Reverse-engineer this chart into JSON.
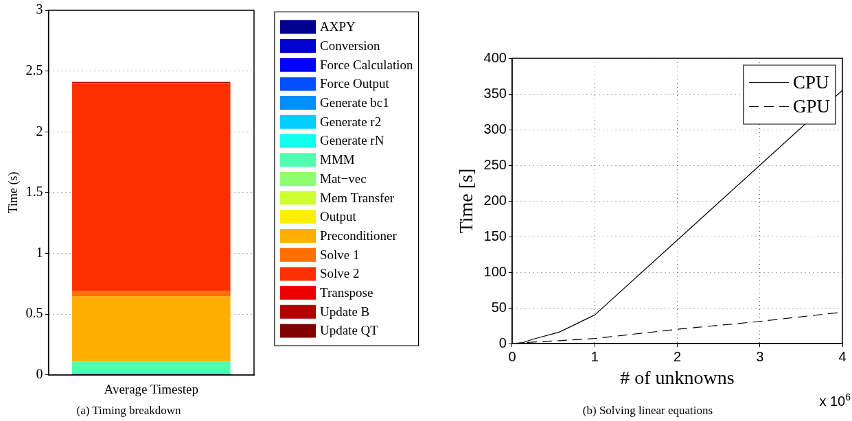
{
  "chart_data": [
    {
      "type": "bar",
      "title": "(a) Timing breakdown",
      "ylabel": "Time (s)",
      "categories": [
        "Average Timestep"
      ],
      "stacked": true,
      "ylim": [
        0,
        3
      ],
      "yticks": [
        0,
        0.5,
        1,
        1.5,
        2,
        2.5,
        3
      ],
      "grid": "y",
      "legend": "right",
      "series": [
        {
          "name": "AXPY",
          "color": "#00008f",
          "values": [
            0.005
          ]
        },
        {
          "name": "Conversion",
          "color": "#0000cf",
          "values": [
            0.003
          ]
        },
        {
          "name": "Force Calculation",
          "color": "#0000ff",
          "values": [
            0
          ]
        },
        {
          "name": "Force Output",
          "color": "#0050ff",
          "values": [
            0
          ]
        },
        {
          "name": "Generate bc1",
          "color": "#008fff",
          "values": [
            0
          ]
        },
        {
          "name": "Generate r2",
          "color": "#00cfff",
          "values": [
            0.002
          ]
        },
        {
          "name": "Generate rN",
          "color": "#10ffef",
          "values": [
            0
          ]
        },
        {
          "name": "MMM",
          "color": "#50ffaf",
          "values": [
            0.1
          ]
        },
        {
          "name": "Mat−vec",
          "color": "#8fff70",
          "values": [
            0
          ]
        },
        {
          "name": "Mem Transfer",
          "color": "#cfff30",
          "values": [
            0
          ]
        },
        {
          "name": "Output",
          "color": "#ffef00",
          "values": [
            0
          ]
        },
        {
          "name": "Preconditioner",
          "color": "#ffaf00",
          "values": [
            0.535
          ]
        },
        {
          "name": "Solve 1",
          "color": "#ff7000",
          "values": [
            0.045
          ]
        },
        {
          "name": "Solve 2",
          "color": "#ff3000",
          "values": [
            1.71
          ]
        },
        {
          "name": "Transpose",
          "color": "#ef0000",
          "values": [
            0
          ]
        },
        {
          "name": "Update B",
          "color": "#af0000",
          "values": [
            0.01
          ]
        },
        {
          "name": "Update QT",
          "color": "#800000",
          "values": [
            0
          ]
        }
      ]
    },
    {
      "type": "line",
      "title": "(b) Solving linear equations",
      "xlabel": "# of unknowns",
      "ylabel": "Time [s]",
      "xlim": [
        0,
        4
      ],
      "xticks": [
        0,
        1,
        2,
        3,
        4
      ],
      "ylim": [
        0,
        400
      ],
      "yticks": [
        0,
        50,
        100,
        150,
        200,
        250,
        300,
        350,
        400
      ],
      "grid": true,
      "legend": "top right",
      "marker": "none",
      "annotations": [
        "x 10$^{6}$"
      ],
      "series": [
        {
          "name": "CPU",
          "color": "#000000",
          "line_style": "solid",
          "x": [
            0,
            0.125,
            0.25,
            0.57,
            1,
            2,
            3,
            4
          ],
          "values": [
            0,
            1,
            6,
            16,
            40,
            145,
            250,
            355
          ]
        },
        {
          "name": "GPU",
          "color": "#000000",
          "line_style": "dashed",
          "x": [
            0,
            0.25,
            0.57,
            1,
            2,
            3,
            4
          ],
          "values": [
            0,
            2,
            4,
            7,
            20,
            31,
            44
          ]
        }
      ]
    }
  ]
}
